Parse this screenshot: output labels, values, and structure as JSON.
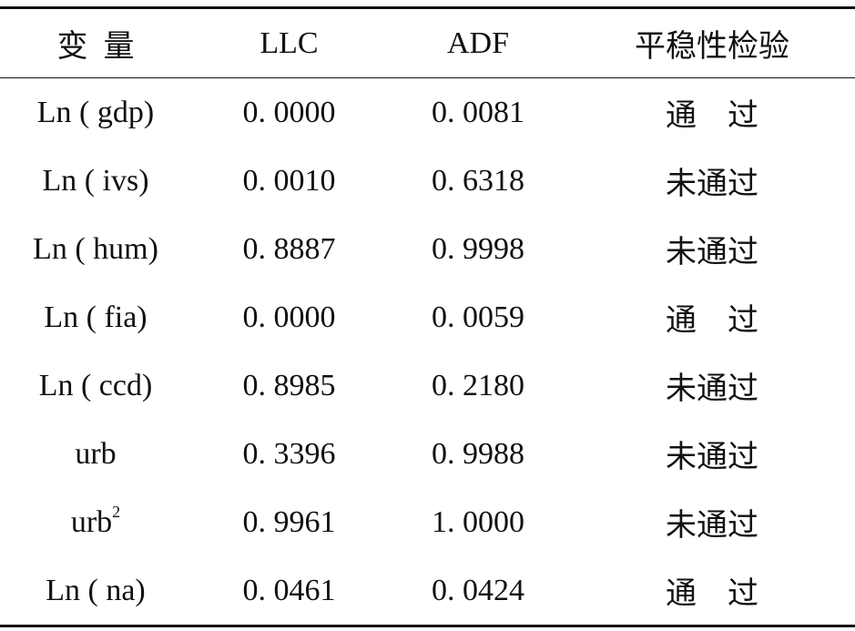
{
  "table": {
    "header": [
      "变  量",
      "LLC",
      "ADF",
      "平稳性检验"
    ],
    "rows": [
      [
        "Ln ( gdp)",
        "0. 0000",
        "0. 0081",
        "通    过"
      ],
      [
        "Ln ( ivs)",
        "0. 0010",
        "0. 6318",
        "未通过"
      ],
      [
        "Ln ( hum)",
        "0. 8887",
        "0. 9998",
        "未通过"
      ],
      [
        "Ln ( fia)",
        "0. 0000",
        "0. 0059",
        "通    过"
      ],
      [
        "Ln ( ccd)",
        "0. 8985",
        "0. 2180",
        "未通过"
      ],
      [
        "urb",
        "0. 3396",
        "0. 9988",
        "未通过"
      ],
      [
        {
          "text": "urb",
          "sup": "2"
        },
        "0. 9961",
        "1. 0000",
        "未通过"
      ],
      [
        "Ln ( na)",
        "0. 0461",
        "0. 0424",
        "通    过"
      ]
    ]
  }
}
